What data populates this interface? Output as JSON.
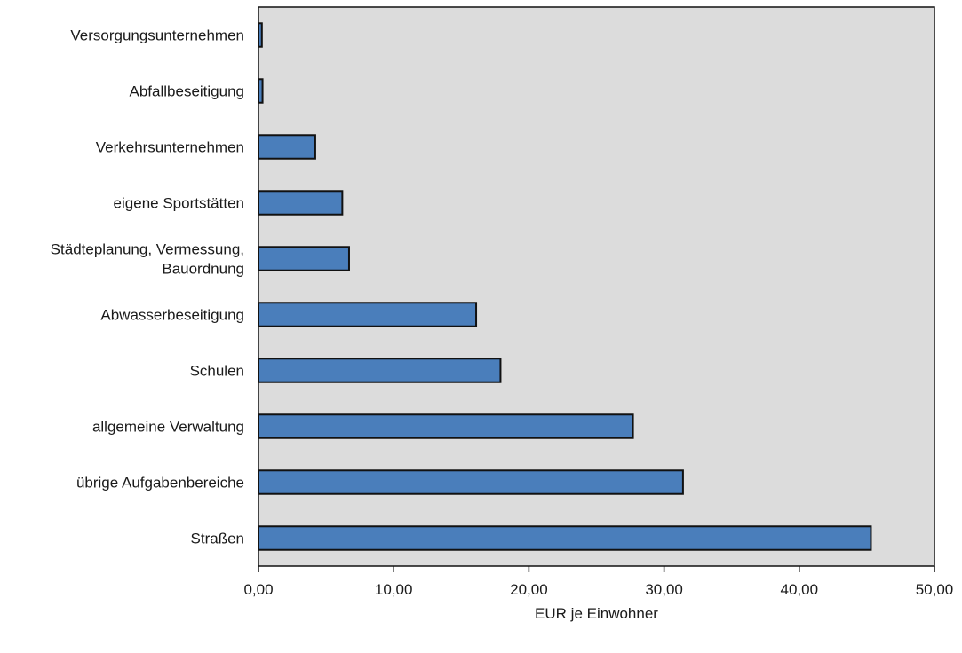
{
  "chart_data": {
    "type": "bar",
    "orientation": "horizontal",
    "categories": [
      "Versorgungsunternehmen",
      "Abfallbeseitigung",
      "Verkehrsunternehmen",
      "eigene Sportstätten",
      "Städteplanung, Vermessung,\nBauordnung",
      "Abwasserbeseitigung",
      "Schulen",
      "allgemeine Verwaltung",
      "übrige Aufgabenbereiche",
      "Straßen"
    ],
    "values": [
      0.25,
      0.3,
      4.2,
      6.2,
      6.7,
      16.1,
      17.9,
      27.7,
      31.4,
      45.3
    ],
    "xlabel": "EUR je Einwohner",
    "ylabel": "",
    "title": "",
    "xlim": [
      0,
      50
    ],
    "xticks": [
      0,
      10,
      20,
      30,
      40,
      50
    ],
    "xtick_labels": [
      "0,00",
      "10,00",
      "20,00",
      "30,00",
      "40,00",
      "50,00"
    ],
    "grid": false,
    "colors": {
      "bar_fill": "#4a7ebb",
      "bar_stroke": "#111111",
      "plot_background": "#dcdcdc",
      "axis": "#111111"
    }
  }
}
